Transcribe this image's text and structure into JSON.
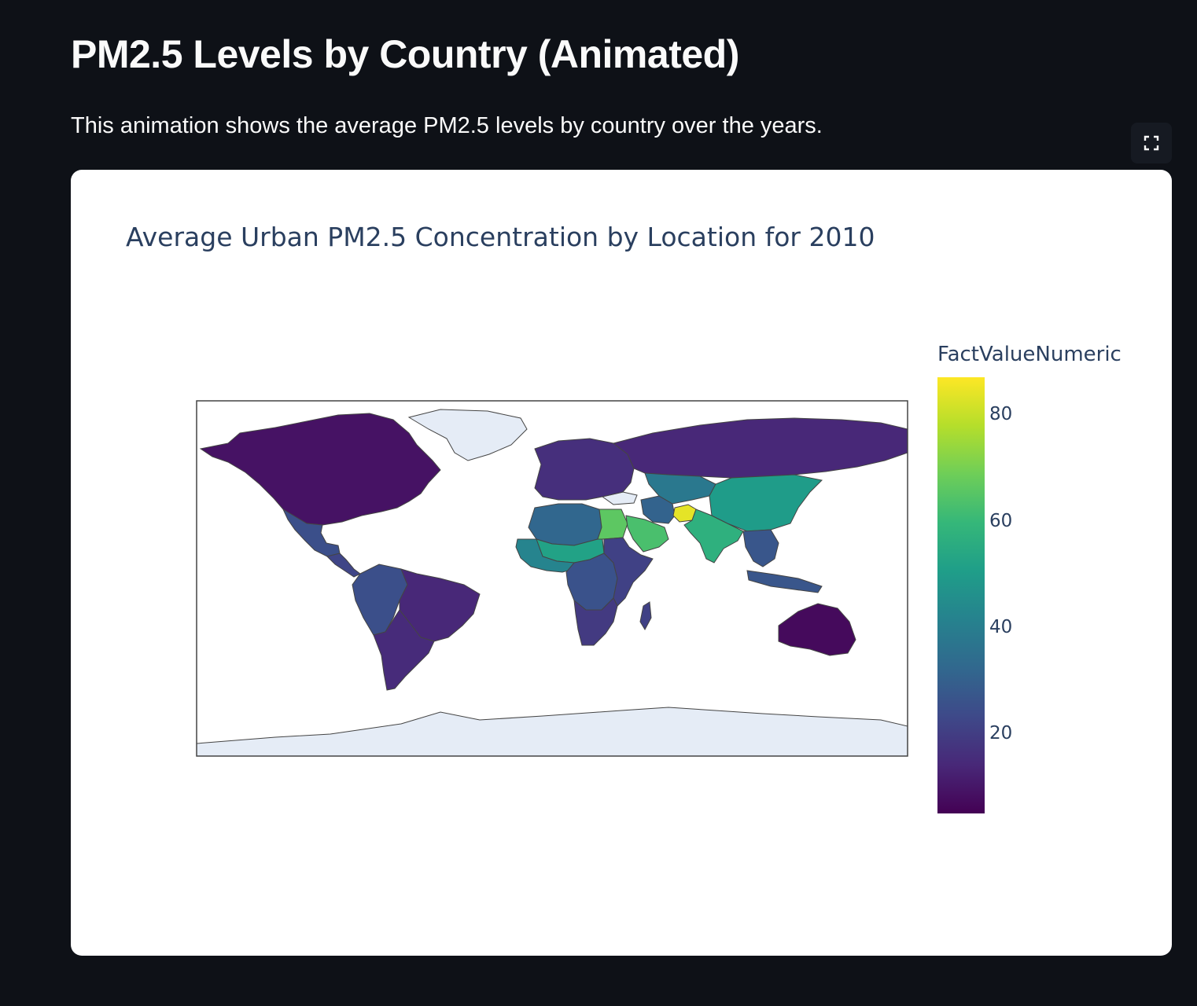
{
  "page": {
    "title": "PM2.5 Levels by Country (Animated)",
    "description": "This animation shows the average PM2.5 levels by country over the years."
  },
  "toolbar": {
    "fullscreen_icon": "fullscreen-icon"
  },
  "chart_data": {
    "type": "choropleth",
    "title": "Average Urban PM2.5 Concentration by Location for 2010",
    "colorbar_title": "FactValueNumeric",
    "colorscale": "Viridis",
    "colorscale_stops": [
      "#440154",
      "#482878",
      "#3e4989",
      "#31688e",
      "#26828e",
      "#1f9e89",
      "#35b779",
      "#6ece58",
      "#b5de2b",
      "#fde725"
    ],
    "color_range": [
      5,
      87
    ],
    "colorbar_ticks": [
      20,
      40,
      60,
      80
    ],
    "projection": "equirectangular",
    "no_data_color": "#e5ecf6",
    "legend_position": "right",
    "regions": [
      {
        "name": "North America",
        "value": 9
      },
      {
        "name": "Mexico",
        "value": 25
      },
      {
        "name": "Central America",
        "value": 22
      },
      {
        "name": "Brazil",
        "value": 14
      },
      {
        "name": "Andean South America",
        "value": 25
      },
      {
        "name": "Southern Cone",
        "value": 15
      },
      {
        "name": "Europe",
        "value": 16
      },
      {
        "name": "Russia",
        "value": 14
      },
      {
        "name": "North Africa",
        "value": 32
      },
      {
        "name": "Sahel",
        "value": 52
      },
      {
        "name": "West Africa",
        "value": 42
      },
      {
        "name": "Egypt",
        "value": 66
      },
      {
        "name": "Arabian Peninsula",
        "value": 63
      },
      {
        "name": "Iran",
        "value": 31
      },
      {
        "name": "Central Asia",
        "value": 38
      },
      {
        "name": "Afghanistan",
        "value": 84
      },
      {
        "name": "South Asia",
        "value": 57
      },
      {
        "name": "China",
        "value": 50
      },
      {
        "name": "Southeast Asia",
        "value": 27
      },
      {
        "name": "Central Africa",
        "value": 26
      },
      {
        "name": "East Africa",
        "value": 21
      },
      {
        "name": "Southern Africa",
        "value": 19
      },
      {
        "name": "Australia",
        "value": 7
      }
    ]
  }
}
